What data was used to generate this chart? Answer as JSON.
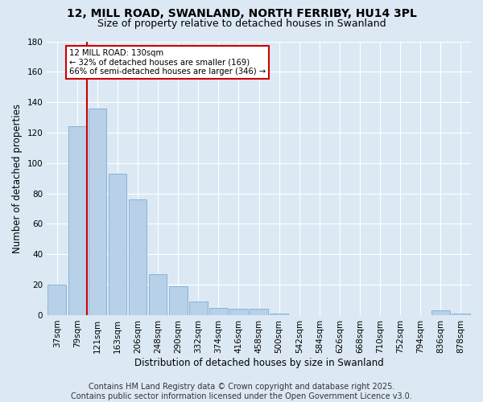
{
  "title": "12, MILL ROAD, SWANLAND, NORTH FERRIBY, HU14 3PL",
  "subtitle": "Size of property relative to detached houses in Swanland",
  "xlabel": "Distribution of detached houses by size in Swanland",
  "ylabel": "Number of detached properties",
  "bins": [
    "37sqm",
    "79sqm",
    "121sqm",
    "163sqm",
    "206sqm",
    "248sqm",
    "290sqm",
    "332sqm",
    "374sqm",
    "416sqm",
    "458sqm",
    "500sqm",
    "542sqm",
    "584sqm",
    "626sqm",
    "668sqm",
    "710sqm",
    "752sqm",
    "794sqm",
    "836sqm",
    "878sqm"
  ],
  "values": [
    20,
    124,
    136,
    93,
    76,
    27,
    19,
    9,
    5,
    4,
    4,
    1,
    0,
    0,
    0,
    0,
    0,
    0,
    0,
    3,
    1
  ],
  "bar_color": "#b8d0e8",
  "bar_edge_color": "#7aafd4",
  "property_bin_index": 2,
  "vline_color": "#cc0000",
  "annotation_text": "12 MILL ROAD: 130sqm\n← 32% of detached houses are smaller (169)\n66% of semi-detached houses are larger (346) →",
  "annotation_box_color": "#ffffff",
  "annotation_box_edge": "#cc0000",
  "ylim": [
    0,
    180
  ],
  "yticks": [
    0,
    20,
    40,
    60,
    80,
    100,
    120,
    140,
    160,
    180
  ],
  "footer_line1": "Contains HM Land Registry data © Crown copyright and database right 2025.",
  "footer_line2": "Contains public sector information licensed under the Open Government Licence v3.0.",
  "bg_color": "#dce9f5",
  "grid_color": "#ffffff",
  "title_fontsize": 10,
  "subtitle_fontsize": 9,
  "axis_label_fontsize": 8.5,
  "tick_fontsize": 7.5,
  "footer_fontsize": 7
}
